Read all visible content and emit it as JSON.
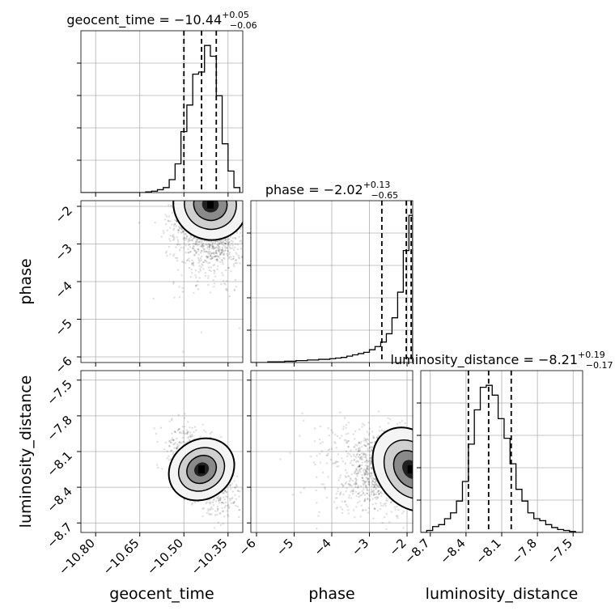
{
  "chart_data": {
    "type": "corner",
    "parameters": [
      "geocent_time",
      "phase",
      "luminosity_distance"
    ],
    "axis_labels": [
      "geocent_time",
      "phase",
      "luminosity_distance"
    ],
    "grid": true,
    "ranges": {
      "geocent_time": [
        -10.85,
        -10.3
      ],
      "phase": [
        -6.15,
        -1.85
      ],
      "luminosity_distance": [
        -8.78,
        -7.42
      ]
    },
    "ticks": {
      "geocent_time": {
        "values": [
          -10.8,
          -10.65,
          -10.5,
          -10.35
        ],
        "labels": [
          "−10.80",
          "−10.65",
          "−10.50",
          "−10.35"
        ]
      },
      "phase": {
        "values": [
          -6,
          -5,
          -4,
          -3,
          -2
        ],
        "labels": [
          "−6",
          "−5",
          "−4",
          "−3",
          "−2"
        ]
      },
      "luminosity_distance": {
        "values": [
          -8.7,
          -8.4,
          -8.1,
          -7.8,
          -7.5
        ],
        "labels": [
          "−8.7",
          "−8.4",
          "−8.1",
          "−7.8",
          "−7.5"
        ]
      }
    },
    "titles": [
      {
        "name": "geocent_time",
        "prefix": "geocent_time = ",
        "median": "−10.44",
        "plus": "+0.05",
        "minus": "−0.06"
      },
      {
        "name": "phase",
        "prefix": "phase = ",
        "median": "−2.02",
        "plus": "+0.13",
        "minus": "−0.65"
      },
      {
        "name": "luminosity_distance",
        "prefix": "luminosity_distance = ",
        "median": "−8.21",
        "plus": "+0.19",
        "minus": "−0.17"
      }
    ],
    "quantiles": {
      "geocent_time": [
        -10.5,
        -10.44,
        -10.39
      ],
      "phase": [
        -2.67,
        -2.02,
        -1.89
      ],
      "luminosity_distance": [
        -8.38,
        -8.21,
        -8.02
      ]
    },
    "histograms": {
      "geocent_time": {
        "edges": [
          -10.85,
          -10.83,
          -10.81,
          -10.79,
          -10.77,
          -10.75,
          -10.73,
          -10.71,
          -10.69,
          -10.67,
          -10.65,
          -10.63,
          -10.61,
          -10.59,
          -10.57,
          -10.55,
          -10.53,
          -10.51,
          -10.49,
          -10.47,
          -10.45,
          -10.43,
          -10.41,
          -10.39,
          -10.37,
          -10.35,
          -10.33,
          -10.31
        ],
        "counts": [
          0,
          0,
          0,
          0,
          0,
          0,
          0,
          0,
          0,
          0,
          0,
          1,
          2,
          4,
          7,
          18,
          40,
          85,
          122,
          165,
          168,
          205,
          190,
          135,
          68,
          30,
          7
        ]
      },
      "phase": {
        "edges": [
          -6.15,
          -6.0,
          -5.85,
          -5.7,
          -5.55,
          -5.4,
          -5.25,
          -5.1,
          -4.95,
          -4.8,
          -4.65,
          -4.5,
          -4.35,
          -4.2,
          -4.05,
          -3.9,
          -3.75,
          -3.6,
          -3.45,
          -3.3,
          -3.15,
          -3.0,
          -2.85,
          -2.7,
          -2.55,
          -2.4,
          -2.25,
          -2.1,
          -1.95,
          -1.85
        ],
        "counts": [
          0,
          0,
          0,
          1,
          1,
          1,
          2,
          2,
          3,
          3,
          4,
          4,
          5,
          5,
          6,
          7,
          8,
          10,
          12,
          14,
          16,
          20,
          25,
          32,
          45,
          70,
          110,
          175,
          230
        ]
      },
      "luminosity_distance": {
        "edges": [
          -8.78,
          -8.73,
          -8.68,
          -8.63,
          -8.58,
          -8.53,
          -8.48,
          -8.43,
          -8.38,
          -8.33,
          -8.28,
          -8.23,
          -8.18,
          -8.13,
          -8.08,
          -8.03,
          -7.98,
          -7.93,
          -7.88,
          -7.83,
          -7.78,
          -7.73,
          -7.68,
          -7.63,
          -7.58,
          -7.53,
          -7.48,
          -7.43
        ],
        "counts": [
          0,
          2,
          6,
          8,
          14,
          20,
          32,
          52,
          90,
          125,
          148,
          150,
          140,
          116,
          96,
          70,
          44,
          32,
          20,
          14,
          12,
          8,
          5,
          3,
          2,
          1,
          0
        ]
      }
    },
    "pairs": [
      {
        "x": "geocent_time",
        "y": "phase",
        "peak": [
          -10.41,
          -1.95
        ],
        "spread": [
          0.06,
          0.55
        ],
        "correlation": 0.25
      },
      {
        "x": "geocent_time",
        "y": "luminosity_distance",
        "peak": [
          -10.44,
          -8.25
        ],
        "spread": [
          0.05,
          0.16
        ],
        "correlation": -0.55
      },
      {
        "x": "phase",
        "y": "luminosity_distance",
        "peak": [
          -1.9,
          -8.25
        ],
        "spread": [
          0.6,
          0.16
        ],
        "correlation": -0.5
      }
    ]
  }
}
